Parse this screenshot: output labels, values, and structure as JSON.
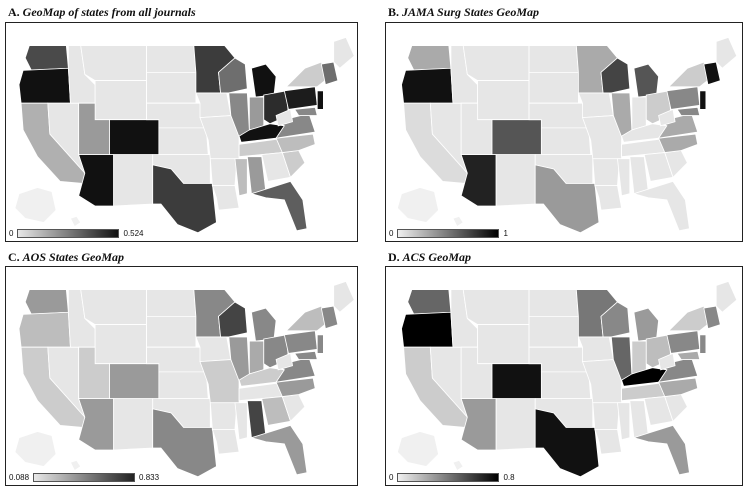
{
  "panels": [
    {
      "letter": "A.",
      "title": "GeoMap of states from all journals",
      "scale_min": "0",
      "scale_max": "0.524",
      "ramp": [
        "#e8e8e8",
        "#111111"
      ]
    },
    {
      "letter": "B.",
      "title": "JAMA Surg States GeoMap",
      "scale_min": "0",
      "scale_max": "1",
      "ramp": [
        "#f0f0f0",
        "#000000"
      ]
    },
    {
      "letter": "C.",
      "title": "AOS States GeoMap",
      "scale_min": "0.088",
      "scale_max": "0.833",
      "ramp": [
        "#e8e8e8",
        "#222222"
      ]
    },
    {
      "letter": "D.",
      "title": "ACS GeoMap",
      "scale_min": "0",
      "scale_max": "0.8",
      "ramp": [
        "#f0f0f0",
        "#000000"
      ]
    }
  ],
  "state_fills": {
    "A": {
      "WA": "#4a4a4a",
      "OR": "#111111",
      "CA": "#b0b0b0",
      "NV": "#e6e6e6",
      "ID": "#e6e6e6",
      "MT": "#e6e6e6",
      "WY": "#e6e6e6",
      "UT": "#9a9a9a",
      "CO": "#111111",
      "AZ": "#111111",
      "NM": "#e6e6e6",
      "ND": "#e6e6e6",
      "SD": "#e6e6e6",
      "NE": "#e6e6e6",
      "KS": "#e6e6e6",
      "OK": "#e6e6e6",
      "TX": "#3c3c3c",
      "MN": "#3c3c3c",
      "IA": "#e6e6e6",
      "MO": "#e6e6e6",
      "AR": "#e6e6e6",
      "LA": "#e6e6e6",
      "WI": "#6e6e6e",
      "IL": "#888888",
      "MI": "#111111",
      "IN": "#9a9a9a",
      "OH": "#2c2c2c",
      "KY": "#111111",
      "TN": "#cccccc",
      "MS": "#bdbdbd",
      "AL": "#9a9a9a",
      "GA": "#e6e6e6",
      "FL": "#5e5e5e",
      "SC": "#cccccc",
      "NC": "#bdbdbd",
      "VA": "#888888",
      "WV": "#e6e6e6",
      "PA": "#1c1c1c",
      "NY": "#cccccc",
      "ME": "#e6e6e6",
      "NE_NEW": "#6e6e6e",
      "NJ": "#111111",
      "MD": "#888888",
      "AK": "#f0f0f0",
      "HI": "#f0f0f0"
    },
    "B": {
      "WA": "#aaaaaa",
      "OR": "#111111",
      "CA": "#dcdcdc",
      "NV": "#e6e6e6",
      "ID": "#e6e6e6",
      "MT": "#e6e6e6",
      "WY": "#e6e6e6",
      "UT": "#e6e6e6",
      "CO": "#555555",
      "AZ": "#222222",
      "NM": "#e6e6e6",
      "ND": "#e6e6e6",
      "SD": "#e6e6e6",
      "NE": "#e6e6e6",
      "KS": "#e6e6e6",
      "OK": "#e6e6e6",
      "TX": "#9a9a9a",
      "MN": "#aaaaaa",
      "IA": "#e6e6e6",
      "MO": "#e6e6e6",
      "AR": "#e6e6e6",
      "LA": "#e6e6e6",
      "WI": "#444444",
      "IL": "#aaaaaa",
      "MI": "#555555",
      "IN": "#e6e6e6",
      "OH": "#cccccc",
      "KY": "#e6e6e6",
      "TN": "#e6e6e6",
      "MS": "#e6e6e6",
      "AL": "#e6e6e6",
      "GA": "#e6e6e6",
      "FL": "#e6e6e6",
      "SC": "#e6e6e6",
      "NC": "#aaaaaa",
      "VA": "#aaaaaa",
      "WV": "#e6e6e6",
      "PA": "#888888",
      "NY": "#cccccc",
      "ME": "#e6e6e6",
      "NE_NEW": "#111111",
      "NJ": "#111111",
      "MD": "#888888",
      "AK": "#f0f0f0",
      "HI": "#f0f0f0"
    },
    "C": {
      "WA": "#9a9a9a",
      "OR": "#bdbdbd",
      "CA": "#cccccc",
      "NV": "#e6e6e6",
      "ID": "#e6e6e6",
      "MT": "#e6e6e6",
      "WY": "#e6e6e6",
      "UT": "#cccccc",
      "CO": "#9a9a9a",
      "AZ": "#9a9a9a",
      "NM": "#e6e6e6",
      "ND": "#e6e6e6",
      "SD": "#e6e6e6",
      "NE": "#e6e6e6",
      "KS": "#e6e6e6",
      "OK": "#e6e6e6",
      "TX": "#888888",
      "MN": "#888888",
      "IA": "#e6e6e6",
      "MO": "#cccccc",
      "AR": "#e6e6e6",
      "LA": "#e6e6e6",
      "WI": "#444444",
      "IL": "#9a9a9a",
      "MI": "#888888",
      "IN": "#aaaaaa",
      "OH": "#888888",
      "KY": "#cccccc",
      "TN": "#e6e6e6",
      "MS": "#e6e6e6",
      "AL": "#444444",
      "GA": "#bdbdbd",
      "FL": "#9a9a9a",
      "SC": "#e6e6e6",
      "NC": "#9a9a9a",
      "VA": "#888888",
      "WV": "#e6e6e6",
      "PA": "#888888",
      "NY": "#bdbdbd",
      "ME": "#e6e6e6",
      "NE_NEW": "#888888",
      "NJ": "#888888",
      "MD": "#888888",
      "AK": "#f0f0f0",
      "HI": "#f0f0f0"
    },
    "D": {
      "WA": "#666666",
      "OR": "#000000",
      "CA": "#cccccc",
      "NV": "#e6e6e6",
      "ID": "#e6e6e6",
      "MT": "#e6e6e6",
      "WY": "#e6e6e6",
      "UT": "#e6e6e6",
      "CO": "#111111",
      "AZ": "#9a9a9a",
      "NM": "#e6e6e6",
      "ND": "#e6e6e6",
      "SD": "#e6e6e6",
      "NE": "#e6e6e6",
      "KS": "#e6e6e6",
      "OK": "#e6e6e6",
      "TX": "#111111",
      "MN": "#777777",
      "IA": "#e6e6e6",
      "MO": "#e6e6e6",
      "AR": "#e6e6e6",
      "LA": "#e6e6e6",
      "WI": "#888888",
      "IL": "#666666",
      "MI": "#9a9a9a",
      "IN": "#cccccc",
      "OH": "#bdbdbd",
      "KY": "#000000",
      "TN": "#cccccc",
      "MS": "#e6e6e6",
      "AL": "#e6e6e6",
      "GA": "#e6e6e6",
      "FL": "#9a9a9a",
      "SC": "#e6e6e6",
      "NC": "#aaaaaa",
      "VA": "#888888",
      "WV": "#e6e6e6",
      "PA": "#888888",
      "NY": "#cccccc",
      "ME": "#e6e6e6",
      "NE_NEW": "#888888",
      "NJ": "#888888",
      "MD": "#aaaaaa",
      "AK": "#f0f0f0",
      "HI": "#f0f0f0"
    }
  }
}
